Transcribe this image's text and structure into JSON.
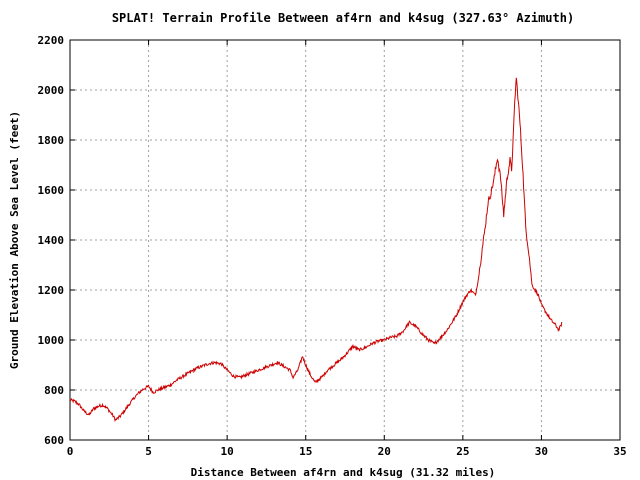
{
  "chart_data": {
    "type": "line",
    "title": "SPLAT! Terrain Profile Between af4rn and k4sug (327.63° Azimuth)",
    "xlabel": "Distance Between af4rn and k4sug (31.32 miles)",
    "ylabel": "Ground Elevation Above Sea Level (feet)",
    "xlim": [
      0,
      35
    ],
    "ylim": [
      600,
      2200
    ],
    "xticks": [
      "0",
      "5",
      "10",
      "15",
      "20",
      "25",
      "30",
      "35"
    ],
    "yticks": [
      "600",
      "800",
      "1000",
      "1200",
      "1400",
      "1600",
      "1800",
      "2000",
      "2200"
    ],
    "grid": true,
    "series_color": "#cc0000",
    "series": [
      {
        "x": [
          0,
          0.3,
          0.6,
          0.9,
          1.2,
          1.5,
          1.8,
          2.1,
          2.4,
          2.7,
          2.9,
          3.2,
          3.5,
          3.8,
          4.1,
          4.4,
          4.7,
          5.0,
          5.3,
          5.6,
          6.0,
          6.4,
          6.8,
          7.2,
          7.6,
          8.0,
          8.4,
          8.8,
          9.2,
          9.6,
          10.0,
          10.4,
          10.8,
          11.2,
          11.6,
          12.0,
          12.4,
          12.8,
          13.2,
          13.6,
          14.0,
          14.2,
          14.5,
          14.8,
          15.0,
          15.3,
          15.6,
          16.0,
          16.4,
          16.8,
          17.2,
          17.6,
          18.0,
          18.4,
          18.8,
          19.2,
          19.6,
          20.0,
          20.4,
          20.8,
          21.2,
          21.6,
          22.0,
          22.4,
          22.8,
          23.2,
          23.6,
          24.0,
          24.3,
          24.6,
          24.9,
          25.2,
          25.5,
          25.8,
          26.0,
          26.2,
          26.4,
          26.6,
          26.8,
          27.0,
          27.2,
          27.4,
          27.6,
          27.8,
          28.0,
          28.1,
          28.2,
          28.3,
          28.4,
          28.6,
          28.8,
          29.0,
          29.2,
          29.4,
          29.6,
          29.8,
          30.0,
          30.3,
          30.6,
          30.9,
          31.1,
          31.32
        ],
        "values": [
          760,
          755,
          740,
          715,
          700,
          725,
          735,
          740,
          725,
          700,
          680,
          695,
          720,
          745,
          770,
          790,
          805,
          815,
          790,
          800,
          810,
          820,
          840,
          855,
          870,
          885,
          895,
          905,
          910,
          905,
          880,
          855,
          850,
          860,
          870,
          880,
          890,
          900,
          910,
          895,
          880,
          850,
          880,
          935,
          900,
          860,
          830,
          850,
          880,
          900,
          920,
          945,
          975,
          960,
          970,
          985,
          995,
          1000,
          1010,
          1015,
          1035,
          1070,
          1055,
          1025,
          1000,
          985,
          1010,
          1040,
          1070,
          1100,
          1140,
          1175,
          1200,
          1180,
          1250,
          1350,
          1440,
          1550,
          1590,
          1650,
          1730,
          1650,
          1500,
          1640,
          1720,
          1680,
          1800,
          1950,
          2050,
          1900,
          1700,
          1450,
          1350,
          1220,
          1200,
          1180,
          1140,
          1110,
          1080,
          1060,
          1040,
          1070
        ]
      }
    ]
  }
}
